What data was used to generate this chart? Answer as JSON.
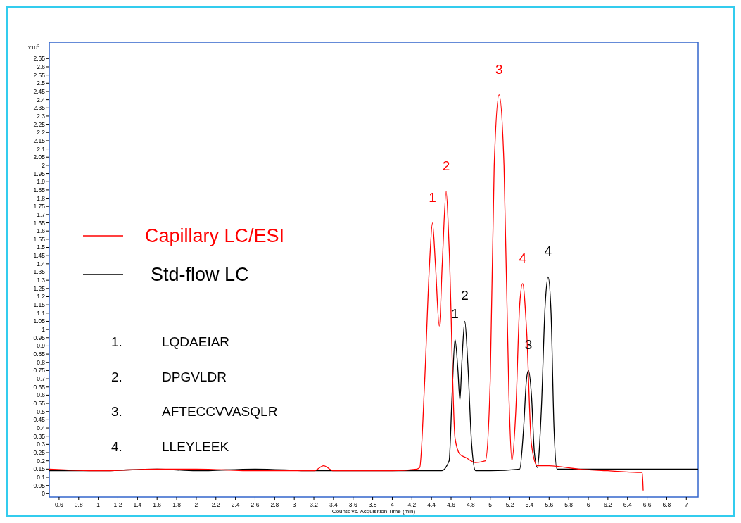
{
  "chart_data": {
    "type": "line",
    "xlabel": "Counts vs. Acquisition Time (min)",
    "ylabel": "x10$^{3}$",
    "xlim": [
      0.5,
      7.12
    ],
    "ylim": [
      -0.02,
      2.75
    ],
    "xticks": [
      0.6,
      0.8,
      1,
      1.2,
      1.4,
      1.6,
      1.8,
      2,
      2.2,
      2.4,
      2.6,
      2.8,
      3,
      3.2,
      3.4,
      3.6,
      3.8,
      4,
      4.2,
      4.4,
      4.6,
      4.8,
      5,
      5.2,
      5.4,
      5.6,
      5.8,
      6,
      6.2,
      6.4,
      6.6,
      6.8,
      7
    ],
    "yticks": [
      0,
      0.05,
      0.1,
      0.15,
      0.2,
      0.25,
      0.3,
      0.35,
      0.4,
      0.45,
      0.5,
      0.55,
      0.6,
      0.65,
      0.7,
      0.75,
      0.8,
      0.85,
      0.9,
      0.95,
      1,
      1.05,
      1.1,
      1.15,
      1.2,
      1.25,
      1.3,
      1.35,
      1.4,
      1.45,
      1.5,
      1.55,
      1.6,
      1.65,
      1.7,
      1.75,
      1.8,
      1.85,
      1.9,
      1.95,
      2,
      2.05,
      2.1,
      2.15,
      2.2,
      2.25,
      2.3,
      2.35,
      2.4,
      2.45,
      2.5,
      2.55,
      2.6,
      2.65
    ],
    "legend": "left",
    "grid": false,
    "marker": "none",
    "line_style": "solid",
    "series": [
      {
        "name": "Capillary LC/ESI",
        "color": "#ff0000",
        "x": [
          0.5,
          1.0,
          1.6,
          2.0,
          2.6,
          3.2,
          3.3,
          3.4,
          4.0,
          4.25,
          4.28,
          4.33,
          4.38,
          4.41,
          4.44,
          4.48,
          4.51,
          4.55,
          4.58,
          4.64,
          4.69,
          4.75,
          4.85,
          4.95,
          5.0,
          5.04,
          5.09,
          5.14,
          5.19,
          5.22,
          5.26,
          5.3,
          5.33,
          5.37,
          5.42,
          5.48,
          5.6,
          5.9,
          6.2,
          6.5,
          6.55,
          6.56
        ],
        "values": [
          0.15,
          0.14,
          0.15,
          0.15,
          0.14,
          0.14,
          0.17,
          0.14,
          0.14,
          0.15,
          0.16,
          0.68,
          1.4,
          1.65,
          1.4,
          1.02,
          1.4,
          1.84,
          1.5,
          0.34,
          0.24,
          0.22,
          0.19,
          0.2,
          0.7,
          2.0,
          2.43,
          2.0,
          0.6,
          0.2,
          0.5,
          1.15,
          1.28,
          1.0,
          0.3,
          0.17,
          0.17,
          0.15,
          0.14,
          0.13,
          0.13,
          0.02
        ]
      },
      {
        "name": "Std-flow LC",
        "color": "#000000",
        "x": [
          0.5,
          1.0,
          1.6,
          2.0,
          2.6,
          3.2,
          4.0,
          4.5,
          4.58,
          4.61,
          4.64,
          4.67,
          4.69,
          4.71,
          4.74,
          4.77,
          4.81,
          4.85,
          5.0,
          5.3,
          5.34,
          5.37,
          5.39,
          5.42,
          5.45,
          5.48,
          5.52,
          5.56,
          5.59,
          5.62,
          5.65,
          5.68,
          6.0,
          6.5,
          7.12
        ],
        "values": [
          0.14,
          0.14,
          0.15,
          0.14,
          0.15,
          0.14,
          0.14,
          0.14,
          0.2,
          0.6,
          0.94,
          0.75,
          0.57,
          0.8,
          1.05,
          0.8,
          0.3,
          0.14,
          0.14,
          0.15,
          0.4,
          0.7,
          0.75,
          0.6,
          0.25,
          0.16,
          0.5,
          1.15,
          1.32,
          1.1,
          0.4,
          0.15,
          0.15,
          0.15,
          0.15
        ]
      }
    ],
    "annotations": [
      {
        "text": "1",
        "x": 4.41,
        "y": 1.65
      },
      {
        "text": "2",
        "x": 4.55,
        "y": 1.84
      },
      {
        "text": "3",
        "x": 5.09,
        "y": 2.43
      },
      {
        "text": "4",
        "x": 5.33,
        "y": 1.28
      },
      {
        "text": "1",
        "x": 4.64,
        "y": 0.94
      },
      {
        "text": "2",
        "x": 4.74,
        "y": 1.05
      },
      {
        "text": "3",
        "x": 5.39,
        "y": 0.75
      },
      {
        "text": "4",
        "x": 5.59,
        "y": 1.32
      },
      "1.  LQDAEIAR",
      "2.  DPGVLDR",
      "3.  AFTECCVVASQLR",
      "4.  LLEYLEEK"
    ]
  }
}
